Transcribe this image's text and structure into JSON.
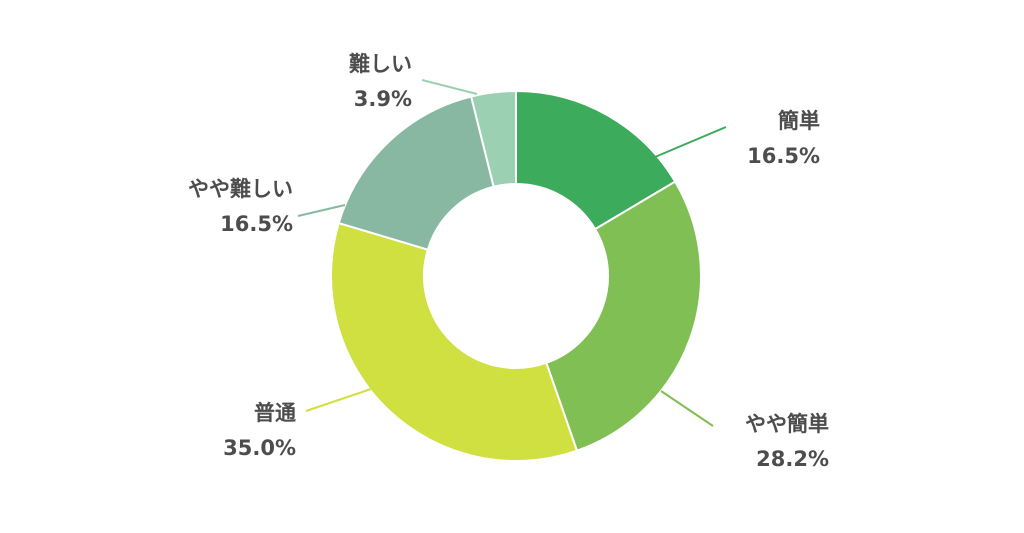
{
  "chart_data": {
    "type": "pie",
    "style": "donut",
    "legend": "none",
    "slices": [
      {
        "label": "簡単",
        "value": 16.5,
        "value_label": "16.5%",
        "color": "#3dab5c",
        "label_side": "right"
      },
      {
        "label": "やや簡単",
        "value": 28.2,
        "value_label": "28.2%",
        "color": "#80bf53",
        "label_side": "right"
      },
      {
        "label": "普通",
        "value": 35.0,
        "value_label": "35.0%",
        "color": "#cfe040",
        "label_side": "left"
      },
      {
        "label": "やや難しい",
        "value": 16.5,
        "value_label": "16.5%",
        "color": "#88b8a2",
        "label_side": "left"
      },
      {
        "label": "難しい",
        "value": 3.9,
        "value_label": "3.9%",
        "color": "#9bd0b2",
        "label_side": "left"
      }
    ]
  }
}
